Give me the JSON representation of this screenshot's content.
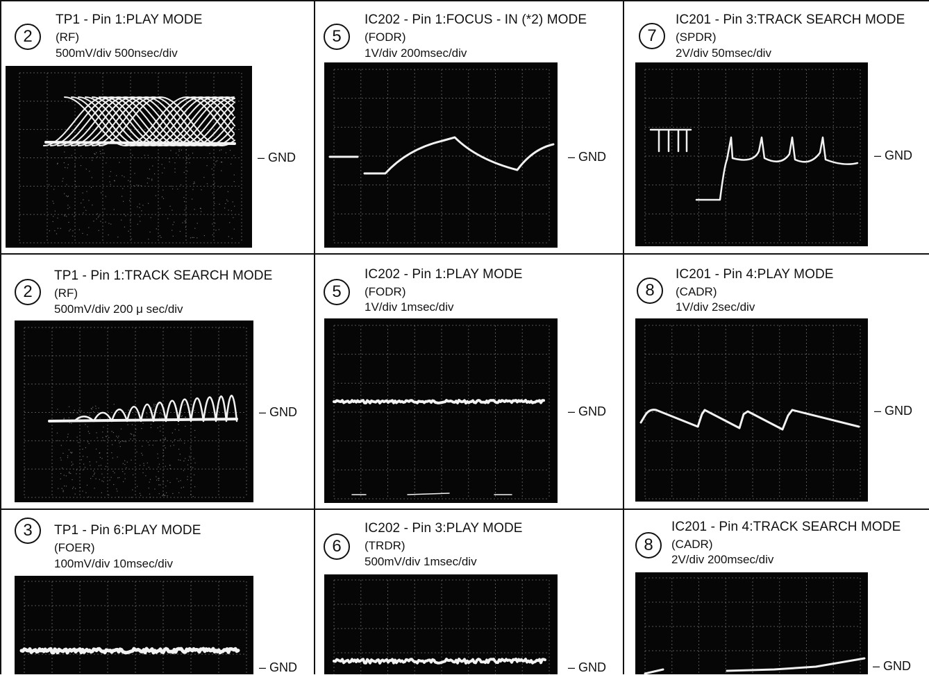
{
  "gnd_label": "– GND",
  "colors": {
    "screen": "#060606",
    "trace": "#f2f2f2",
    "grid": "#8a8a8a"
  },
  "cells": [
    {
      "id": "c1",
      "number": "2",
      "title": "TP1 - Pin 1:PLAY MODE",
      "signal": "(RF)",
      "scale": "500mV/div   500nsec/div",
      "trace": "rf-play"
    },
    {
      "id": "c2",
      "number": "5",
      "title": "IC202 - Pin 1:FOCUS - IN (*2) MODE",
      "signal": "(FODR)",
      "scale": "1V/div   200msec/div",
      "trace": "fodr-focus-in"
    },
    {
      "id": "c3",
      "number": "7",
      "title": "IC201 - Pin 3:TRACK SEARCH MODE",
      "signal": "(SPDR)",
      "scale": "2V/div   50msec/div",
      "trace": "spdr-track-search"
    },
    {
      "id": "c4",
      "number": "2",
      "title": "TP1 - Pin 1:TRACK SEARCH MODE",
      "signal": "(RF)",
      "scale": "500mV/div   200 μ sec/div",
      "trace": "rf-track-search"
    },
    {
      "id": "c5",
      "number": "5",
      "title": "IC202 - Pin 1:PLAY MODE",
      "signal": "(FODR)",
      "scale": "1V/div   1msec/div",
      "trace": "fodr-play"
    },
    {
      "id": "c6",
      "number": "8",
      "title": "IC201 - Pin 4:PLAY MODE",
      "signal": "(CADR)",
      "scale": "1V/div   2sec/div",
      "trace": "cadr-play"
    },
    {
      "id": "c7",
      "number": "3",
      "title": "TP1 - Pin 6:PLAY MODE",
      "signal": "(FOER)",
      "scale": "100mV/div   10msec/div",
      "trace": "foer-play"
    },
    {
      "id": "c8",
      "number": "6",
      "title": "IC202 - Pin 3:PLAY MODE",
      "signal": "(TRDR)",
      "scale": "500mV/div   1msec/div",
      "trace": "trdr-play"
    },
    {
      "id": "c9",
      "number": "8",
      "title": "IC201 - Pin 4:TRACK SEARCH MODE",
      "signal": "(CADR)",
      "scale": "2V/div 200msec/div",
      "trace": "cadr-track-search"
    }
  ]
}
